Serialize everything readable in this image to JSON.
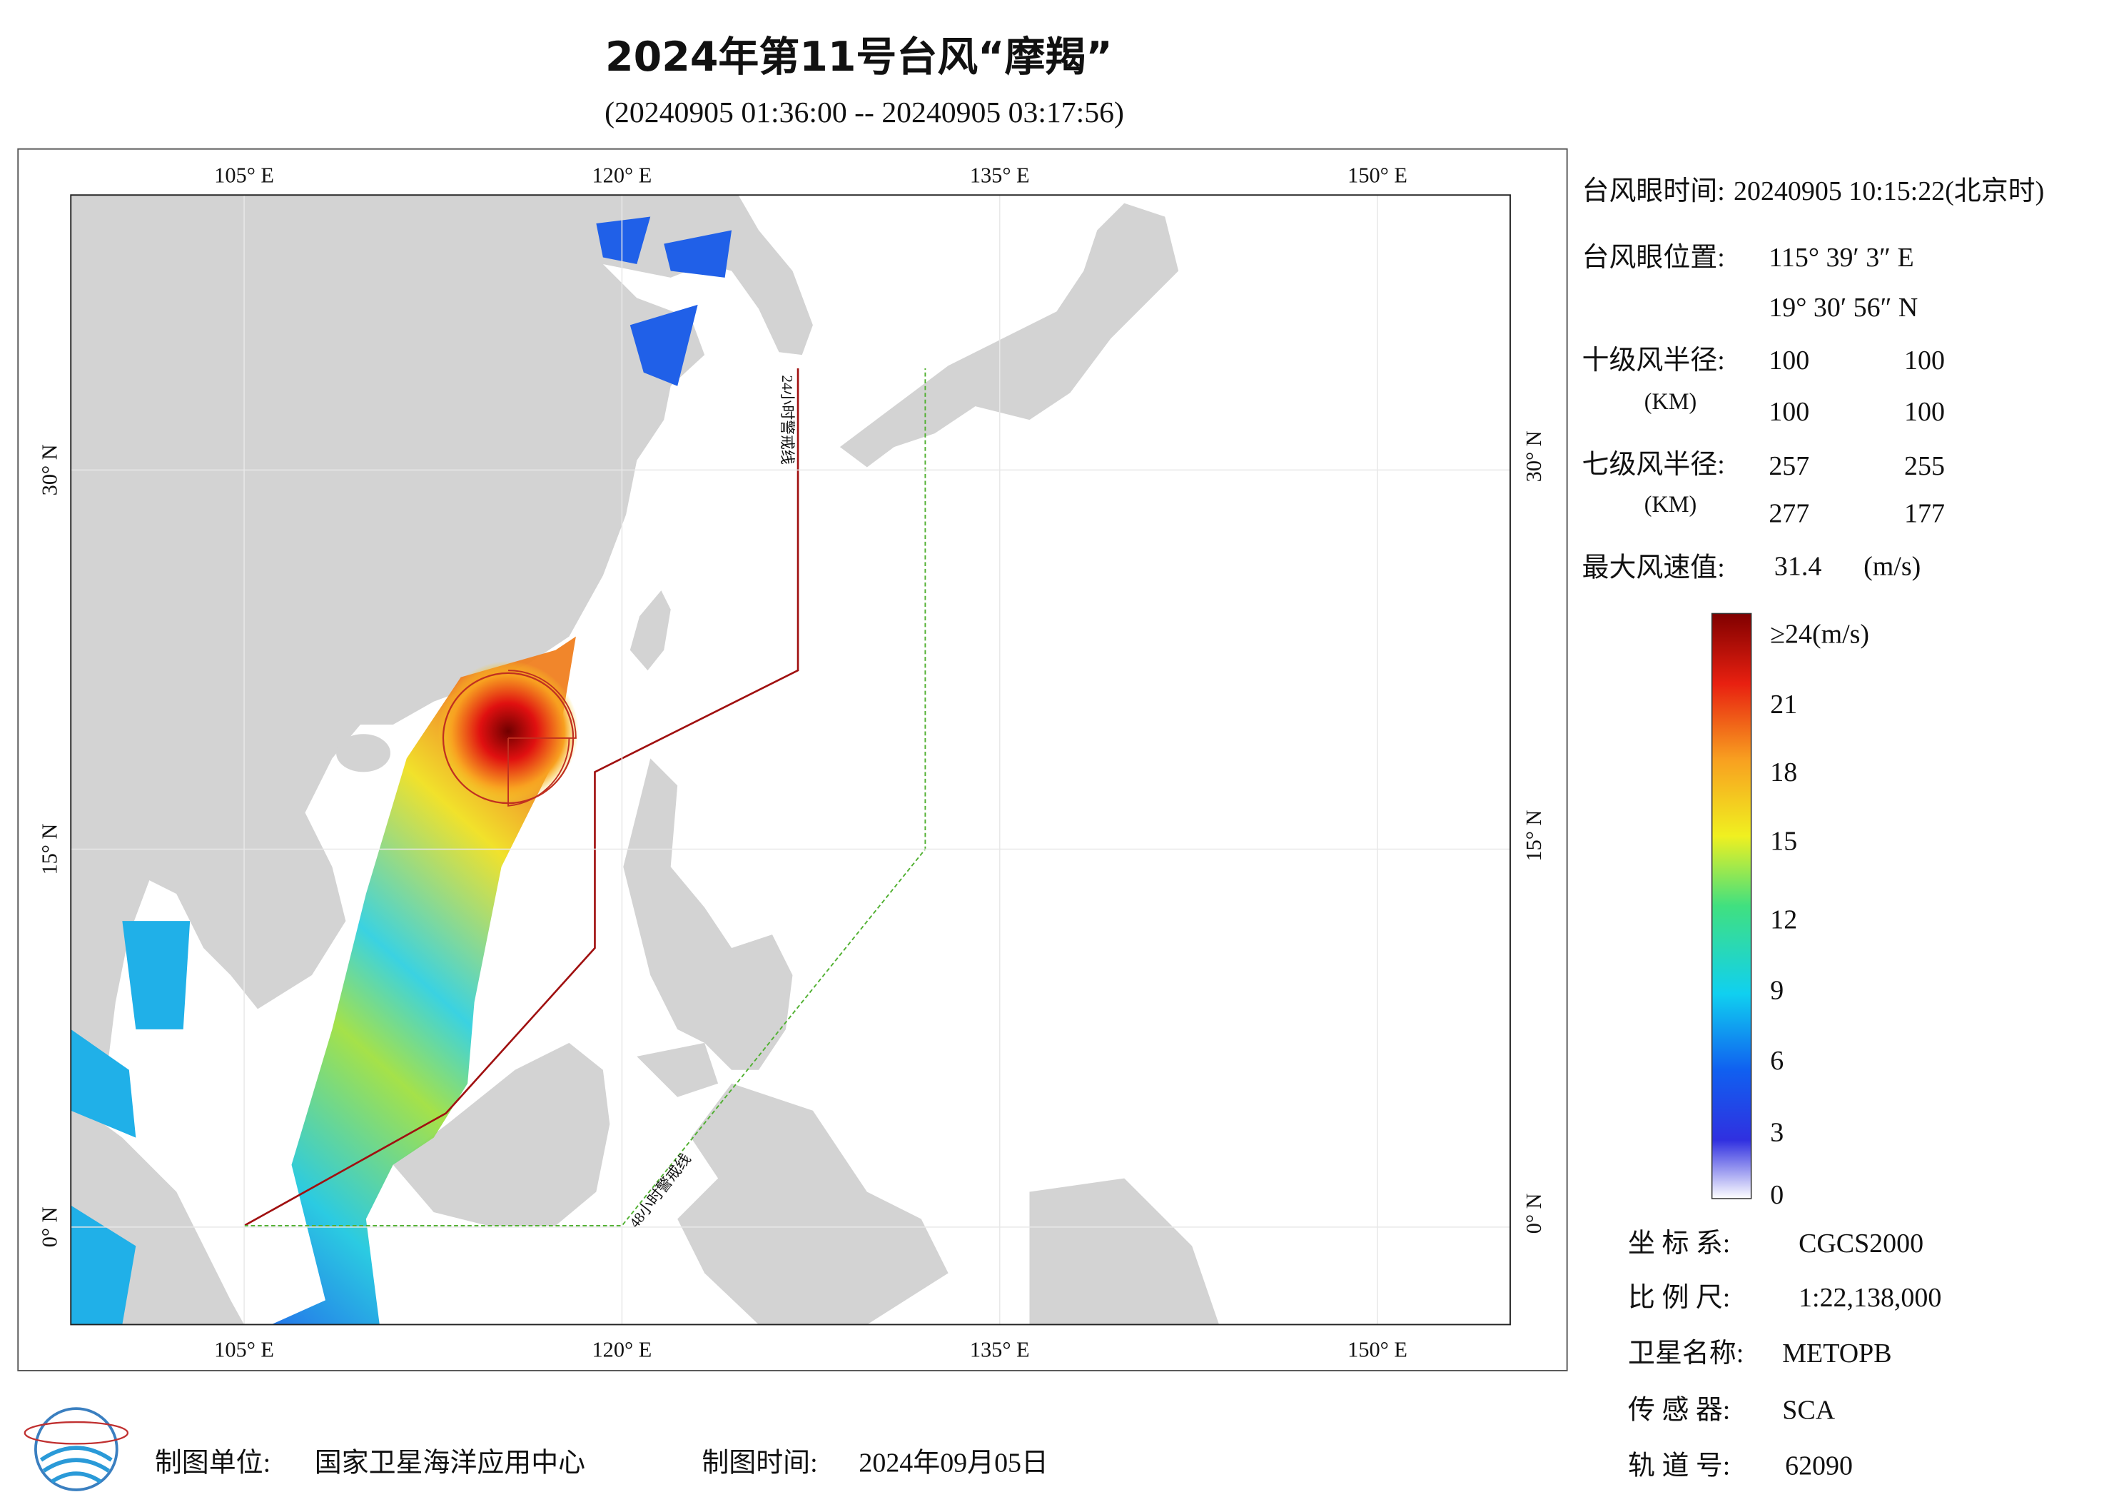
{
  "title": "2024年第11号台风“摩羯”",
  "subtitle": "(20240905 01:36:00 -- 20240905 03:17:56)",
  "map": {
    "top_labels": [
      "105° E",
      "120° E",
      "135° E",
      "150° E"
    ],
    "bottom_labels": [
      "105° E",
      "120° E",
      "135° E",
      "150° E"
    ],
    "left_labels": [
      "30° N",
      "15° N",
      "0° N"
    ],
    "right_labels": [
      "30° N",
      "15° N",
      "0° N"
    ],
    "warning_lines": [
      "24小时警戒线",
      "48小时警戒线"
    ]
  },
  "info": {
    "eye_time_label": "台风眼时间:",
    "eye_time": "20240905 10:15:22(北京时)",
    "eye_pos_label": "台风眼位置:",
    "eye_lon": "115° 39′ 3″ E",
    "eye_lat": "19° 30′ 56″ N",
    "r10_label": "十级风半径:",
    "r10_unit": "(KM)",
    "r10": [
      100,
      100,
      100,
      100
    ],
    "r7_label": "七级风半径:",
    "r7_unit": "(KM)",
    "r7": [
      257,
      255,
      277,
      177
    ],
    "max_label": "最大风速值:",
    "max_value": 31.4,
    "max_unit": "(m/s)"
  },
  "colorbar": {
    "labels": [
      "≥24(m/s)",
      "21",
      "18",
      "15",
      "12",
      "9",
      "6",
      "3",
      "0"
    ]
  },
  "footer": {
    "unit_label": "制图单位:",
    "unit": "国家卫星海洋应用中心",
    "time_label": "制图时间:",
    "time": "2024年09月05日",
    "crs_label": "坐 标 系:",
    "crs": "CGCS2000",
    "scale_label": "比 例 尺:",
    "scale": "1:22,138,000",
    "satellite_label": "卫星名称:",
    "satellite": "METOPB",
    "sensor_label": "传 感 器:",
    "sensor": "SCA",
    "orbit_label": "轨 道 号:",
    "orbit": "62090"
  }
}
